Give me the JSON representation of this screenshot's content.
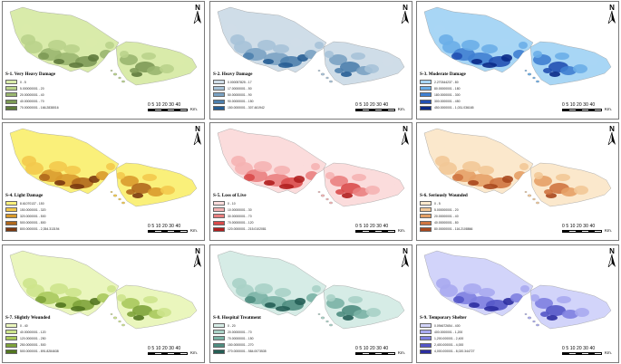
{
  "north_label": "N",
  "scale": {
    "ticks": "0 5 10   20    30    40",
    "unit": "Km."
  },
  "panels": [
    {
      "title": "S-1. Very Heavy Damage",
      "colors": [
        "#d9ebaa",
        "#b9d38b",
        "#99b66f",
        "#7d9a56",
        "#5e7a3c"
      ],
      "classes": [
        "0 - 5",
        "5.000000001 - 20",
        "20.00000001 - 40",
        "40.00000001 - 70",
        "70.00000001 - 166.2838016"
      ]
    },
    {
      "title": "S-2. Heavy Damage",
      "colors": [
        "#cfdde8",
        "#a6c2d8",
        "#7aa2c3",
        "#4d7fad",
        "#265d93"
      ],
      "classes": [
        "0.000057825 - 17",
        "17.00000001 - 50",
        "50.00000001 - 90",
        "90.00000001 - 150",
        "150.0000001 - 307.461942"
      ]
    },
    {
      "title": "S-3. Moderate Damage",
      "colors": [
        "#a8d6f5",
        "#6aaee8",
        "#3f80d2",
        "#2150b3",
        "#0a2a88"
      ],
      "classes": [
        "2.270344237 - 80",
        "80.00000001 - 180",
        "180.0000001 - 300",
        "300.0000001 - 450",
        "450.0000001 - 1,031.036165"
      ]
    },
    {
      "title": "S-4. Light Damage",
      "colors": [
        "#faf07a",
        "#f3c94c",
        "#d99a2c",
        "#b0681c",
        "#7a3810"
      ],
      "classes": [
        "8.61070137 - 150",
        "150.0000001 - 320",
        "320.0000001 - 500",
        "500.0000001 - 800",
        "800.0000001 - 2,354.313194"
      ]
    },
    {
      "title": "S-5. Loss of Live",
      "colors": [
        "#fbdcdc",
        "#f5b3b3",
        "#ea7f7f",
        "#d94b4b",
        "#b01f1f"
      ],
      "classes": [
        "0 - 10",
        "10.00000001 - 30",
        "30.00000001 - 70",
        "70.00000001 - 120",
        "120.0000001 - 215.0102081"
      ]
    },
    {
      "title": "S-6. Seriously Wounded",
      "colors": [
        "#fbe8cc",
        "#f2c897",
        "#e5a066",
        "#cf7440",
        "#a8481e"
      ],
      "classes": [
        "0 - 5",
        "5.000000001 - 20",
        "20.00000001 - 40",
        "40.00000001 - 80",
        "80.00000001 - 116.2108866"
      ]
    },
    {
      "title": "S-7. Slightly Wounded",
      "colors": [
        "#eaf6bd",
        "#cde48c",
        "#a9c95c",
        "#7ea33a",
        "#52761f"
      ],
      "classes": [
        "0 - 40",
        "40.00000001 - 120",
        "120.0000001 - 250",
        "250.0000001 - 500",
        "500.0000001 - 891.8284638"
      ]
    },
    {
      "title": "S-8. Hospital Treatment",
      "colors": [
        "#d6ece6",
        "#a9d2c7",
        "#7ab3a5",
        "#4e8d80",
        "#245e55"
      ],
      "classes": [
        "0 - 20",
        "20.00000001 - 70",
        "70.00000001 - 150",
        "150.0000001 - 270",
        "270.0000001 - 584.0073535"
      ]
    },
    {
      "title": "S-9. Temporary Shelter",
      "colors": [
        "#d2d4fa",
        "#a9aaf0",
        "#7e80e0",
        "#5456c7",
        "#2c2ea0"
      ],
      "classes": [
        "0.094672654 - 400",
        "400.0000001 - 1,200",
        "1,200.000001 - 2,400",
        "2,400.000001 - 4,000",
        "4,000.000001 - 8,020.344727"
      ]
    }
  ]
}
